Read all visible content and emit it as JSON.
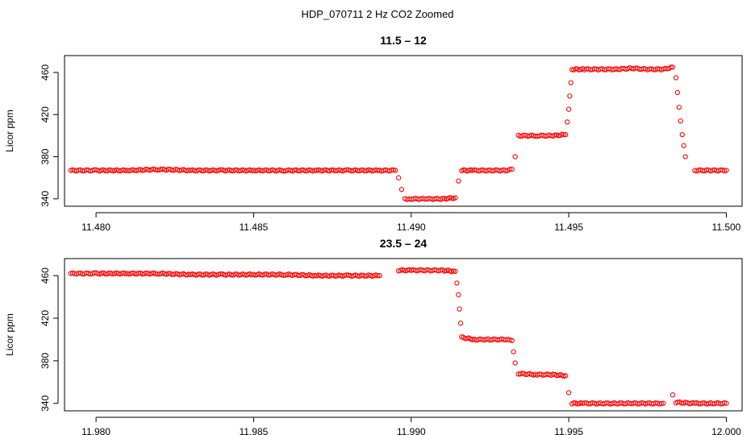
{
  "figure": {
    "title": "HDP_070711  2 Hz CO2 Zoomed"
  },
  "chart_data": [
    {
      "type": "scatter",
      "title": "11.5 – 12",
      "xlabel": "",
      "ylabel": "Licor ppm",
      "xlim": [
        11.479,
        11.5005
      ],
      "ylim": [
        333,
        476
      ],
      "xticks": [
        11.48,
        11.485,
        11.49,
        11.495,
        11.5
      ],
      "xtick_labels": [
        "11.480",
        "11.485",
        "11.490",
        "11.495",
        "11.500"
      ],
      "yticks": [
        340,
        380,
        420,
        460
      ],
      "ytick_labels": [
        "340",
        "380",
        "420",
        "460"
      ],
      "grid": false,
      "marker_color": "#ff0000",
      "series": [
        {
          "x": [
            11.4792,
            11.48,
            11.481,
            11.482,
            11.483,
            11.484,
            11.485,
            11.486,
            11.487,
            11.488,
            11.489,
            11.4895,
            11.4896,
            11.4897,
            11.4898,
            11.49,
            11.4905,
            11.491,
            11.4914,
            11.4915,
            11.4916,
            11.492,
            11.4925,
            11.493,
            11.4932,
            11.4933,
            11.4934,
            11.494,
            11.4945,
            11.4949,
            11.495,
            11.4951,
            11.4955,
            11.496,
            11.4965,
            11.497,
            11.4975,
            11.498,
            11.4983,
            11.4984,
            11.4985,
            11.4986,
            11.4987,
            11.499,
            11.4995,
            11.5
          ],
          "y": [
            367,
            367,
            367,
            368,
            367,
            367,
            367,
            367,
            367,
            367,
            367,
            367,
            360,
            349,
            340,
            340,
            340,
            340,
            341,
            357,
            367,
            367,
            367,
            367,
            368,
            380,
            400,
            400,
            400,
            401,
            425,
            463,
            463,
            463,
            463,
            464,
            463,
            463,
            465,
            455,
            427,
            401,
            380,
            367,
            367,
            367
          ]
        }
      ]
    },
    {
      "type": "scatter",
      "title": "23.5 – 24",
      "xlabel": "",
      "ylabel": "Licor ppm",
      "xlim": [
        11.979,
        12.0005
      ],
      "ylim": [
        333,
        476
      ],
      "xticks": [
        11.98,
        11.985,
        11.99,
        11.995,
        12.0
      ],
      "xtick_labels": [
        "11.980",
        "11.985",
        "11.990",
        "11.995",
        "12.000"
      ],
      "yticks": [
        340,
        380,
        420,
        460
      ],
      "ytick_labels": [
        "340",
        "380",
        "420",
        "460"
      ],
      "grid": false,
      "marker_color": "#ff0000",
      "series": [
        {
          "x": [
            11.9792,
            11.98,
            11.981,
            11.982,
            11.983,
            11.984,
            11.985,
            11.986,
            11.987,
            11.988,
            11.989,
            11.9896,
            11.99,
            11.9905,
            11.991,
            11.9914,
            11.9915,
            11.9916,
            11.992,
            11.9925,
            11.993,
            11.9932,
            11.9933,
            11.9934,
            11.994,
            11.9945,
            11.9949,
            11.995,
            11.9951,
            11.9955,
            11.996,
            11.9965,
            11.997,
            11.9975,
            11.998,
            11.9983,
            11.9984,
            11.999,
            11.9995,
            12.0
          ],
          "y": [
            462,
            462,
            462,
            462,
            461,
            461,
            461,
            461,
            460,
            460,
            460,
            465,
            465,
            465,
            465,
            464,
            442,
            402,
            400,
            400,
            400,
            399,
            378,
            368,
            367,
            367,
            366,
            350,
            340,
            340,
            340,
            340,
            340,
            340,
            340,
            348,
            341,
            340,
            340,
            340
          ]
        }
      ]
    }
  ]
}
